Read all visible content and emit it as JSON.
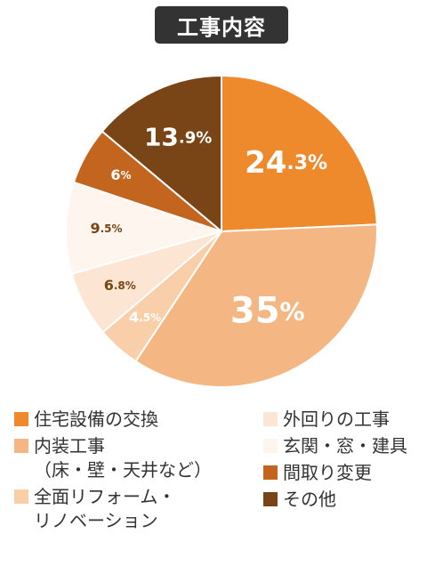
{
  "chart_data": {
    "type": "pie",
    "title": "工事内容",
    "slices": [
      {
        "label": "住宅設備の交換",
        "value": 24.3,
        "color": "#ef8a2c",
        "text_color": "#ffffff",
        "display": {
          "major": "24",
          "minor": ".3%"
        }
      },
      {
        "label": "内装工事\n（床・壁・天井など）",
        "value": 35,
        "color": "#f4b783",
        "text_color": "#ffffff",
        "display": {
          "major": "35",
          "minor": "%"
        }
      },
      {
        "label": "全面リフォーム・\nリノベーション",
        "value": 4.5,
        "color": "#f8cfa9",
        "text_color": "#ffffff",
        "display": {
          "major": "4",
          "minor": ".5%"
        }
      },
      {
        "label": "外回りの工事",
        "value": 6.8,
        "color": "#fce6d3",
        "text_color": "#7a4516",
        "display": {
          "major": "6",
          "minor": ".8%"
        }
      },
      {
        "label": "玄関・窓・建具",
        "value": 9.5,
        "color": "#fef5ee",
        "text_color": "#7a4516",
        "display": {
          "major": "9",
          "minor": ".5%"
        }
      },
      {
        "label": "間取り変更",
        "value": 6,
        "color": "#c4651f",
        "text_color": "#ffffff",
        "display": {
          "major": "6",
          "minor": "%"
        }
      },
      {
        "label": "その他",
        "value": 13.9,
        "color": "#7a4516",
        "text_color": "#ffffff",
        "display": {
          "major": "13",
          "minor": ".9%"
        }
      }
    ]
  }
}
